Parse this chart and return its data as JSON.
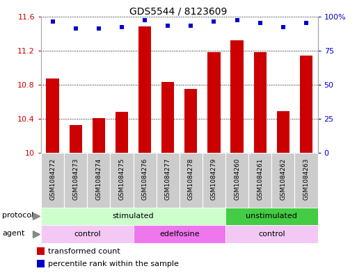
{
  "title": "GDS5544 / 8123609",
  "categories": [
    "GSM1084272",
    "GSM1084273",
    "GSM1084274",
    "GSM1084275",
    "GSM1084276",
    "GSM1084277",
    "GSM1084278",
    "GSM1084279",
    "GSM1084260",
    "GSM1084261",
    "GSM1084262",
    "GSM1084263"
  ],
  "bar_values": [
    10.87,
    10.33,
    10.41,
    10.48,
    11.48,
    10.83,
    10.75,
    11.18,
    11.32,
    11.18,
    10.49,
    11.14
  ],
  "percentile_values": [
    96,
    91,
    91,
    92,
    97,
    93,
    93,
    96,
    97,
    95,
    92,
    95
  ],
  "bar_color": "#cc0000",
  "dot_color": "#0000cc",
  "ylim_left": [
    10.0,
    11.6
  ],
  "ylim_right": [
    0,
    100
  ],
  "yticks_left": [
    10.0,
    10.4,
    10.8,
    11.2,
    11.6
  ],
  "yticks_right": [
    0,
    25,
    50,
    75,
    100
  ],
  "ytick_labels_left": [
    "10",
    "10.4",
    "10.8",
    "11.2",
    "11.6"
  ],
  "ytick_labels_right": [
    "0",
    "25",
    "50",
    "75",
    "100%"
  ],
  "protocol_groups": [
    {
      "label": "stimulated",
      "start": 0,
      "end": 8,
      "color": "#ccffcc"
    },
    {
      "label": "unstimulated",
      "start": 8,
      "end": 12,
      "color": "#44cc44"
    }
  ],
  "agent_groups": [
    {
      "label": "control",
      "start": 0,
      "end": 4,
      "color": "#f4c8f4"
    },
    {
      "label": "edelfosine",
      "start": 4,
      "end": 8,
      "color": "#ee77ee"
    },
    {
      "label": "control",
      "start": 8,
      "end": 12,
      "color": "#f4c8f4"
    }
  ],
  "legend_items": [
    {
      "label": "transformed count",
      "color": "#cc0000"
    },
    {
      "label": "percentile rank within the sample",
      "color": "#0000cc"
    }
  ],
  "bar_width": 0.55,
  "background_color": "#ffffff",
  "tick_fontsize": 8,
  "cat_fontsize": 6.5,
  "title_fontsize": 10,
  "row_fontsize": 8,
  "legend_fontsize": 8
}
